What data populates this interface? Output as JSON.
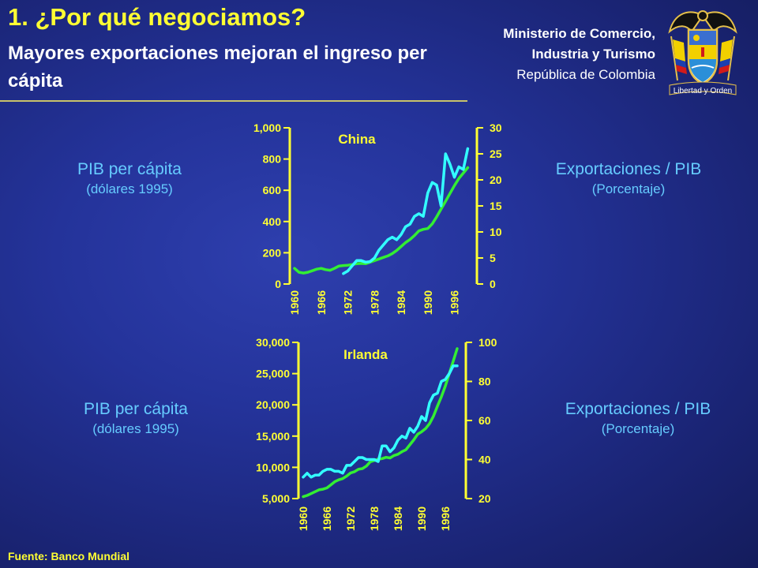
{
  "header": {
    "title": "1. ¿Por qué negociamos?",
    "subtitle": "Mayores exportaciones mejoran el ingreso per cápita"
  },
  "ministry": {
    "line1": "Ministerio de Comercio,",
    "line2": "Industria y Turismo",
    "line3": "República de Colombia",
    "motto": "Libertad y Orden"
  },
  "labels": {
    "left_title": "PIB per cápita",
    "left_unit": "(dólares 1995)",
    "right_title": "Exportaciones / PIB",
    "right_unit": "(Porcentaje)"
  },
  "footer": "Fuente: Banco Mundial",
  "colors": {
    "background": "#24339a",
    "title_yellow": "#ffff33",
    "label_blue": "#66ccff",
    "gdp_line": "#33ee33",
    "exports_line": "#33ffff"
  },
  "chart_data": [
    {
      "type": "line",
      "title": "China",
      "x_ticks": [
        "1960",
        "1966",
        "1972",
        "1978",
        "1984",
        "1990",
        "1996"
      ],
      "xlim": [
        1960,
        2000
      ],
      "y_left": {
        "ticks": [
          "0",
          "200",
          "400",
          "600",
          "800",
          "1,000"
        ],
        "lim": [
          0,
          1000
        ]
      },
      "y_right": {
        "ticks": [
          "0",
          "5",
          "10",
          "15",
          "20",
          "25",
          "30"
        ],
        "lim": [
          0,
          30
        ]
      },
      "series": [
        {
          "axis": "left",
          "x": [
            1960,
            1961,
            1962,
            1963,
            1964,
            1965,
            1966,
            1967,
            1968,
            1969,
            1970,
            1971,
            1972,
            1973,
            1974,
            1975,
            1976,
            1977,
            1978,
            1979,
            1980,
            1981,
            1982,
            1983,
            1984,
            1985,
            1986,
            1987,
            1988,
            1989,
            1990,
            1991,
            1992,
            1993,
            1994,
            1995,
            1996,
            1997,
            1998,
            1999
          ],
          "y": [
            100,
            75,
            70,
            75,
            85,
            95,
            100,
            92,
            88,
            100,
            115,
            118,
            120,
            125,
            130,
            132,
            130,
            140,
            150,
            160,
            170,
            180,
            195,
            215,
            240,
            265,
            285,
            310,
            340,
            350,
            355,
            385,
            430,
            480,
            530,
            580,
            630,
            675,
            710,
            745
          ]
        },
        {
          "axis": "right",
          "x": [
            1971,
            1972,
            1973,
            1974,
            1975,
            1976,
            1977,
            1978,
            1979,
            1980,
            1981,
            1982,
            1983,
            1984,
            1985,
            1986,
            1987,
            1988,
            1989,
            1990,
            1991,
            1992,
            1993,
            1994,
            1995,
            1996,
            1997,
            1998,
            1999
          ],
          "y": [
            2,
            2.5,
            3.5,
            4.5,
            4.5,
            4.2,
            4.3,
            5,
            6.5,
            7.5,
            8.5,
            9,
            8.5,
            9.5,
            11,
            11.5,
            13,
            13.5,
            13,
            17.5,
            19.5,
            19,
            15,
            25,
            23,
            20.5,
            22.5,
            22,
            26
          ]
        }
      ]
    },
    {
      "type": "line",
      "title": "Irlanda",
      "x_ticks": [
        "1960",
        "1966",
        "1972",
        "1978",
        "1984",
        "1990",
        "1996"
      ],
      "xlim": [
        1960,
        2000
      ],
      "y_left": {
        "ticks": [
          "5,000",
          "10,000",
          "15,000",
          "20,000",
          "25,000",
          "30,000"
        ],
        "lim": [
          5000,
          30000
        ]
      },
      "y_right": {
        "ticks": [
          "20",
          "40",
          "60",
          "80",
          "100"
        ],
        "lim": [
          20,
          100
        ]
      },
      "series": [
        {
          "axis": "left",
          "x": [
            1960,
            1961,
            1962,
            1963,
            1964,
            1965,
            1966,
            1967,
            1968,
            1969,
            1970,
            1971,
            1972,
            1973,
            1974,
            1975,
            1976,
            1977,
            1978,
            1979,
            1980,
            1981,
            1982,
            1983,
            1984,
            1985,
            1986,
            1987,
            1988,
            1989,
            1990,
            1991,
            1992,
            1993,
            1994,
            1995,
            1996,
            1997,
            1998,
            1999
          ],
          "y": [
            5300,
            5500,
            5800,
            6100,
            6400,
            6500,
            6700,
            7200,
            7700,
            8000,
            8200,
            8600,
            9100,
            9300,
            9700,
            9800,
            10200,
            10900,
            11100,
            11300,
            11400,
            11600,
            11500,
            11900,
            12100,
            12500,
            12800,
            13600,
            14400,
            15300,
            15700,
            16200,
            17000,
            18200,
            19800,
            21300,
            23000,
            25000,
            27000,
            29000
          ]
        },
        {
          "axis": "right",
          "x": [
            1960,
            1961,
            1962,
            1963,
            1964,
            1965,
            1966,
            1967,
            1968,
            1969,
            1970,
            1971,
            1972,
            1973,
            1974,
            1975,
            1976,
            1977,
            1978,
            1979,
            1980,
            1981,
            1982,
            1983,
            1984,
            1985,
            1986,
            1987,
            1988,
            1989,
            1990,
            1991,
            1992,
            1993,
            1994,
            1995,
            1996,
            1997,
            1998,
            1999
          ],
          "y": [
            31,
            33,
            31,
            32,
            32,
            34,
            35,
            35,
            34,
            34,
            33,
            37,
            37,
            39,
            41,
            41,
            40,
            40,
            40,
            39,
            47,
            47,
            44,
            46,
            50,
            52,
            51,
            56,
            54,
            57,
            62,
            60,
            69,
            73,
            74,
            80,
            81,
            84,
            88,
            88
          ]
        }
      ]
    }
  ]
}
